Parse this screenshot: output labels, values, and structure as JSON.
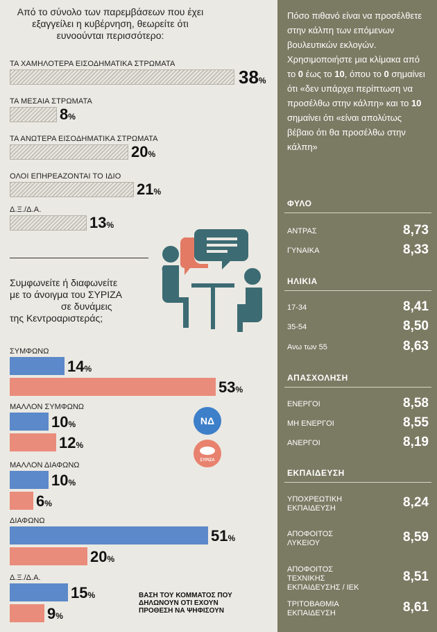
{
  "left": {
    "question1": "Από το σύνολο των παρεμβάσεων που έχει εξαγγείλει η κυβέρνηση, θεωρείτε ότι ευνοούνται περισσότερο:",
    "question2_l1": "Συμφωνείτε ή διαφωνείτε",
    "question2_l2": "με το άνοιγμα του ΣΥΡΙΖΑ",
    "question2_l3": "σε δυνάμεις",
    "question2_l4": "της Κεντροαριστεράς;",
    "note": "ΒΑΣΗ ΤΟΥ ΚΟΜΜΑΤΟΣ ΠΟΥ ΔΗΛΩΝΟΥΝ ΟΤΙ ΕΧΟΥΝ ΠΡΟΘΕΣΗ ΝΑ ΨΗΦΙΣΟΥΝ",
    "nd_logo_text": "ΝΔ",
    "syriza_logo_text": "ΣΥΡΙΖΑ"
  },
  "chart_data": [
    {
      "type": "bar",
      "orientation": "horizontal",
      "categories": [
        "ΤΑ ΧΑΜΗΛΟΤΕΡΑ ΕΙΣΟΔΗΜΑΤΙΚΑ ΣΤΡΩΜΑΤΑ",
        "ΤΑ ΜΕΣΑΙΑ ΣΤΡΩΜΑΤΑ",
        "ΤΑ ΑΝΩΤΕΡΑ ΕΙΣΟΔΗΜΑΤΙΚΑ ΣΤΡΩΜΑΤΑ",
        "ΟΛΟΙ ΕΠΗΡΕΑΖΟΝΤΑΙ ΤΟ ΙΔΙΟ",
        "Δ.Ξ./Δ.Α."
      ],
      "values": [
        38,
        8,
        20,
        21,
        13
      ],
      "unit": "%"
    },
    {
      "type": "bar",
      "orientation": "horizontal",
      "categories": [
        "ΣΥΜΦΩΝΩ",
        "ΜΑΛΛΟΝ ΣΥΜΦΩΝΩ",
        "ΜΑΛΛΟΝ ΔΙΑΦΩΝΩ",
        "ΔΙΑΦΩΝΩ",
        "Δ.Ξ./Δ.Α."
      ],
      "series": [
        {
          "color": "#5b89c9",
          "values": [
            14,
            10,
            10,
            51,
            15
          ]
        },
        {
          "color": "#ea8c7b",
          "values": [
            53,
            12,
            6,
            20,
            9
          ]
        }
      ],
      "unit": "%"
    }
  ],
  "right": {
    "question_parts": [
      {
        "t": "Πόσο πιθανό είναι να προσέλθετε στην κάλπη των επόμενων βουλευτικών εκλογών. Χρησιμοποιήστε μια κλίμακα από το ",
        "b": false
      },
      {
        "t": "0",
        "b": true
      },
      {
        "t": " έως το ",
        "b": false
      },
      {
        "t": "10",
        "b": true
      },
      {
        "t": ", όπου το ",
        "b": false
      },
      {
        "t": "0",
        "b": true
      },
      {
        "t": " σημαίνει ότι «δεν υπάρχει περίπτωση να προσέλθω στην κάλπη» και το ",
        "b": false
      },
      {
        "t": "10",
        "b": true
      },
      {
        "t": " σημαίνει ότι «είναι απολύτως βέβαιο ότι θα προσέλθω στην κάλπη»",
        "b": false
      }
    ],
    "sections": [
      {
        "title": "ΦΥΛΟ",
        "rows": [
          {
            "label": "ΑΝΤΡΑΣ",
            "value": "8,73"
          },
          {
            "label": "ΓΥΝΑΙΚΑ",
            "value": "8,33"
          }
        ]
      },
      {
        "title": "ΗΛΙΚΙΑ",
        "rows": [
          {
            "label": "17-34",
            "value": "8,41"
          },
          {
            "label": "35-54",
            "value": "8,50"
          },
          {
            "label": "Ανω των 55",
            "value": "8,63"
          }
        ]
      },
      {
        "title": "ΑΠΑΣΧΟΛΗΣΗ",
        "rows": [
          {
            "label": "ΕΝΕΡΓΟΙ",
            "value": "8,58"
          },
          {
            "label": "ΜΗ ΕΝΕΡΓΟΙ",
            "value": "8,55"
          },
          {
            "label": "ΑΝΕΡΓΟΙ",
            "value": "8,19"
          }
        ]
      },
      {
        "title": "ΕΚΠΑΙΔΕΥΣΗ",
        "rows": [
          {
            "label": "ΥΠΟΧΡΕΩΤΙΚΗ ΕΚΠΑΙΔΕΥΣΗ",
            "value": "8,24"
          },
          {
            "label": "ΑΠΟΦΟΙΤΟΣ ΛΥΚΕΙΟΥ",
            "value": "8,59"
          },
          {
            "label": "ΑΠΟΦΟΙΤΟΣ ΤΕΧΝΙΚΗΣ ΕΚΠΑΙΔΕΥΣΗΣ / ΙΕΚ",
            "value": "8,51"
          },
          {
            "label": "ΤΡΙΤΟΒΑΘΜΙΑ ΕΚΠΑΙΔΕΥΣΗ",
            "value": "8,61"
          }
        ]
      }
    ]
  }
}
